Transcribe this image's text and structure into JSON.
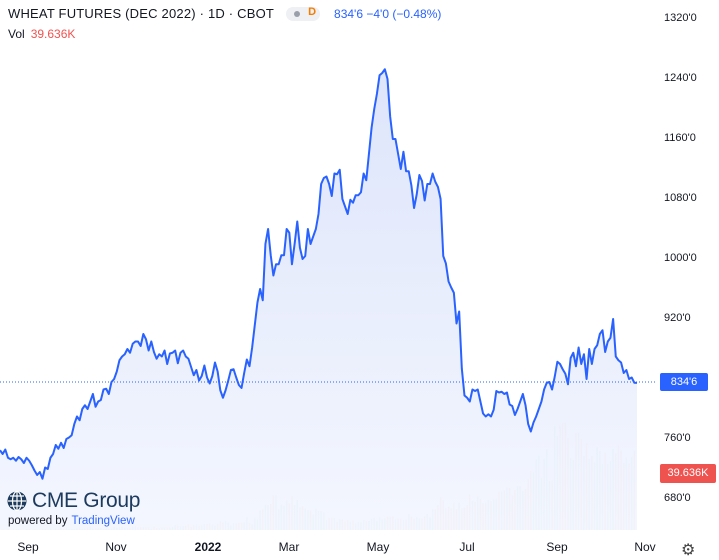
{
  "header": {
    "symbol": "WHEAT FUTURES (DEC 2022) · 1D · CBOT",
    "badge": "D",
    "last_price": "834'6",
    "change": "−4'0 (−0.48%)"
  },
  "volume": {
    "label": "Vol",
    "value": "39.636K"
  },
  "price_axis": {
    "labels": [
      "1320'0",
      "1240'0",
      "1160'0",
      "1080'0",
      "1000'0",
      "920'0",
      "760'0",
      "680'0"
    ],
    "last_price_tag": "834'6",
    "volume_tag": "39.636K"
  },
  "time_axis": {
    "labels": [
      "Sep",
      "Nov",
      "2022",
      "Mar",
      "May",
      "Jul",
      "Sep",
      "Nov"
    ]
  },
  "branding": {
    "logo_text": "CME Group",
    "powered_by": "powered by",
    "provider": "TradingView"
  },
  "colors": {
    "line": "#2962ff",
    "area_top": "#dfe6fb",
    "vol_up": "#26a69a",
    "vol_down": "#ef5350",
    "price_tag": "#2962ff",
    "volume_tag": "#ef5350"
  },
  "chart_data": {
    "type": "area",
    "price_ticks": [
      1320,
      1240,
      1160,
      1080,
      1000,
      920,
      760,
      680
    ],
    "x_ticks": [
      "Sep",
      "Nov",
      "2022",
      "Mar",
      "May",
      "Jul",
      "Sep",
      "Nov"
    ],
    "series": [
      {
        "values": [
          745,
          740,
          746,
          735,
          733,
          735,
          731,
          736,
          733,
          728,
          735,
          731,
          725,
          718,
          712,
          716,
          707,
          722,
          720,
          735,
          740,
          752,
          747,
          755,
          748,
          760,
          762,
          765,
          780,
          790,
          785,
          800,
          805,
          800,
          810,
          820,
          803,
          810,
          812,
          826,
          827,
          820,
          836,
          840,
          850,
          865,
          870,
          873,
          880,
          875,
          887,
          890,
          890,
          884,
          900,
          893,
          878,
          890,
          876,
          867,
          873,
          870,
          878,
          860,
          874,
          875,
          878,
          861,
          875,
          878,
          870,
          867,
          856,
          845,
          852,
          838,
          844,
          858,
          842,
          834,
          844,
          862,
          850,
          825,
          815,
          825,
          838,
          852,
          853,
          842,
          832,
          828,
          848,
          866,
          857,
          882,
          912,
          942,
          960,
          945,
          1020,
          1040,
          1005,
          978,
          993,
          993,
          1005,
          1005,
          1040,
          1035,
          993,
          1020,
          1050,
          1015,
          1000,
          1004,
          1040,
          1020,
          1030,
          1040,
          1060,
          1100,
          1108,
          1110,
          1100,
          1084,
          1114,
          1113,
          1119,
          1080,
          1070,
          1060,
          1079,
          1075,
          1085,
          1085,
          1089,
          1114,
          1105,
          1140,
          1175,
          1200,
          1220,
          1245,
          1248,
          1253,
          1240,
          1190,
          1160,
          1160,
          1140,
          1120,
          1143,
          1117,
          1117,
          1098,
          1068,
          1086,
          1112,
          1104,
          1078,
          1100,
          1100,
          1114,
          1103,
          1096,
          1080,
          1004,
          994,
          970,
          962,
          955,
          914,
          930,
          854,
          818,
          815,
          810,
          826,
          824,
          826,
          810,
          794,
          790,
          793,
          790,
          799,
          824,
          822,
          823,
          820,
          822,
          806,
          804,
          792,
          800,
          810,
          820,
          805,
          780,
          770,
          782,
          790,
          800,
          810,
          826,
          835,
          836,
          826,
          843,
          863,
          860,
          853,
          847,
          833,
          868,
          875,
          857,
          882,
          860,
          873,
          840,
          880,
          860,
          880,
          885,
          900,
          905,
          876,
          890,
          895,
          920,
          870,
          865,
          862,
          848,
          852,
          840,
          842,
          835,
          834.75
        ]
      }
    ],
    "volume_k": [
      0.0,
      0.2,
      0.0,
      0.4,
      0.0,
      0.4,
      0.7,
      0.6,
      0.0,
      0.0,
      0.5,
      0.6,
      0.0,
      0.5,
      0.0,
      0.0,
      0.7,
      0.5,
      0.0,
      0.8,
      0.3,
      0.8,
      0.7,
      0.9,
      0.6,
      0.9,
      0.7,
      0.6,
      0.6,
      0.8,
      0.8,
      0.7,
      0.8,
      1.6,
      1.7,
      0.7,
      1.0,
      0.8,
      1.1,
      0.7,
      0.8,
      0.6,
      0.7,
      1.5,
      1.3,
      1.6,
      1.8,
      1.1,
      1.1,
      0.9,
      1.8,
      2.0,
      1.4,
      1.5,
      1.6,
      1.3,
      1.4,
      0.7,
      1.6,
      1.1,
      1.0,
      1.2,
      1.2,
      1.3,
      1.3,
      1.4,
      2.4,
      2.2,
      1.8,
      2.1,
      2.1,
      2.9,
      1.8,
      2.5,
      2.8,
      1.9,
      2.3,
      3.0,
      3.1,
      3.3,
      2.8,
      2.3,
      3.2,
      4.4,
      3.8,
      4.5,
      3.7,
      2.3,
      3.6,
      3.4,
      3.6,
      3.8,
      3.8,
      6.5,
      3.5,
      2.8,
      6.2,
      5.2,
      9.8,
      10.2,
      12.6,
      12.4,
      13.0,
      17.3,
      17.6,
      10.3,
      12.8,
      12.1,
      14.9,
      13.3,
      17.0,
      12.5,
      15.0,
      11.4,
      11.8,
      10.7,
      10.0,
      9.8,
      7.8,
      10.6,
      9.5,
      9.5,
      8.8,
      4.7,
      6.0,
      6.2,
      6.1,
      4.0,
      5.4,
      5.3,
      4.3,
      5.0,
      4.2,
      4.8,
      3.3,
      4.0,
      3.9,
      4.9,
      4.4,
      4.5,
      5.3,
      6.2,
      4.5,
      6.2,
      5.3,
      5.8,
      6.7,
      6.7,
      6.8,
      5.4,
      5.8,
      5.7,
      4.7,
      5.3,
      8.0,
      6.6,
      5.7,
      6.4,
      5.7,
      5.6,
      6.8,
      8.0,
      6.3,
      10.3,
      10.2,
      12.5,
      16.4,
      14.9,
      11.0,
      11.6,
      10.7,
      13.6,
      10.4,
      13.6,
      10.7,
      11.3,
      12.5,
      17.9,
      14.6,
      14.1,
      16.8,
      15.5,
      13.5,
      13.6,
      15.1,
      14.5,
      15.3,
      15.3,
      19.1,
      19.2,
      19.8,
      21.3,
      21.0,
      17.4,
      20.0,
      21.8,
      22.0,
      19.5,
      20.5,
      25.4,
      29.5,
      28.8,
      35.1,
      37.1,
      25.9,
      35.4,
      40.4,
      24.6,
      24.9,
      51.9,
      46.9,
      52.3,
      53.3,
      53.6,
      46.0,
      35.8,
      35.0,
      48.5,
      48.6,
      45.5,
      37.2,
      43.4,
      35.4,
      36.9,
      33.8,
      41.4,
      39.5,
      33.0,
      38.7,
      33.0,
      34.6,
      40.5,
      38.3,
      42.7,
      39.8,
      33.5,
      36.4,
      33.2,
      36.5,
      39.6
    ]
  }
}
